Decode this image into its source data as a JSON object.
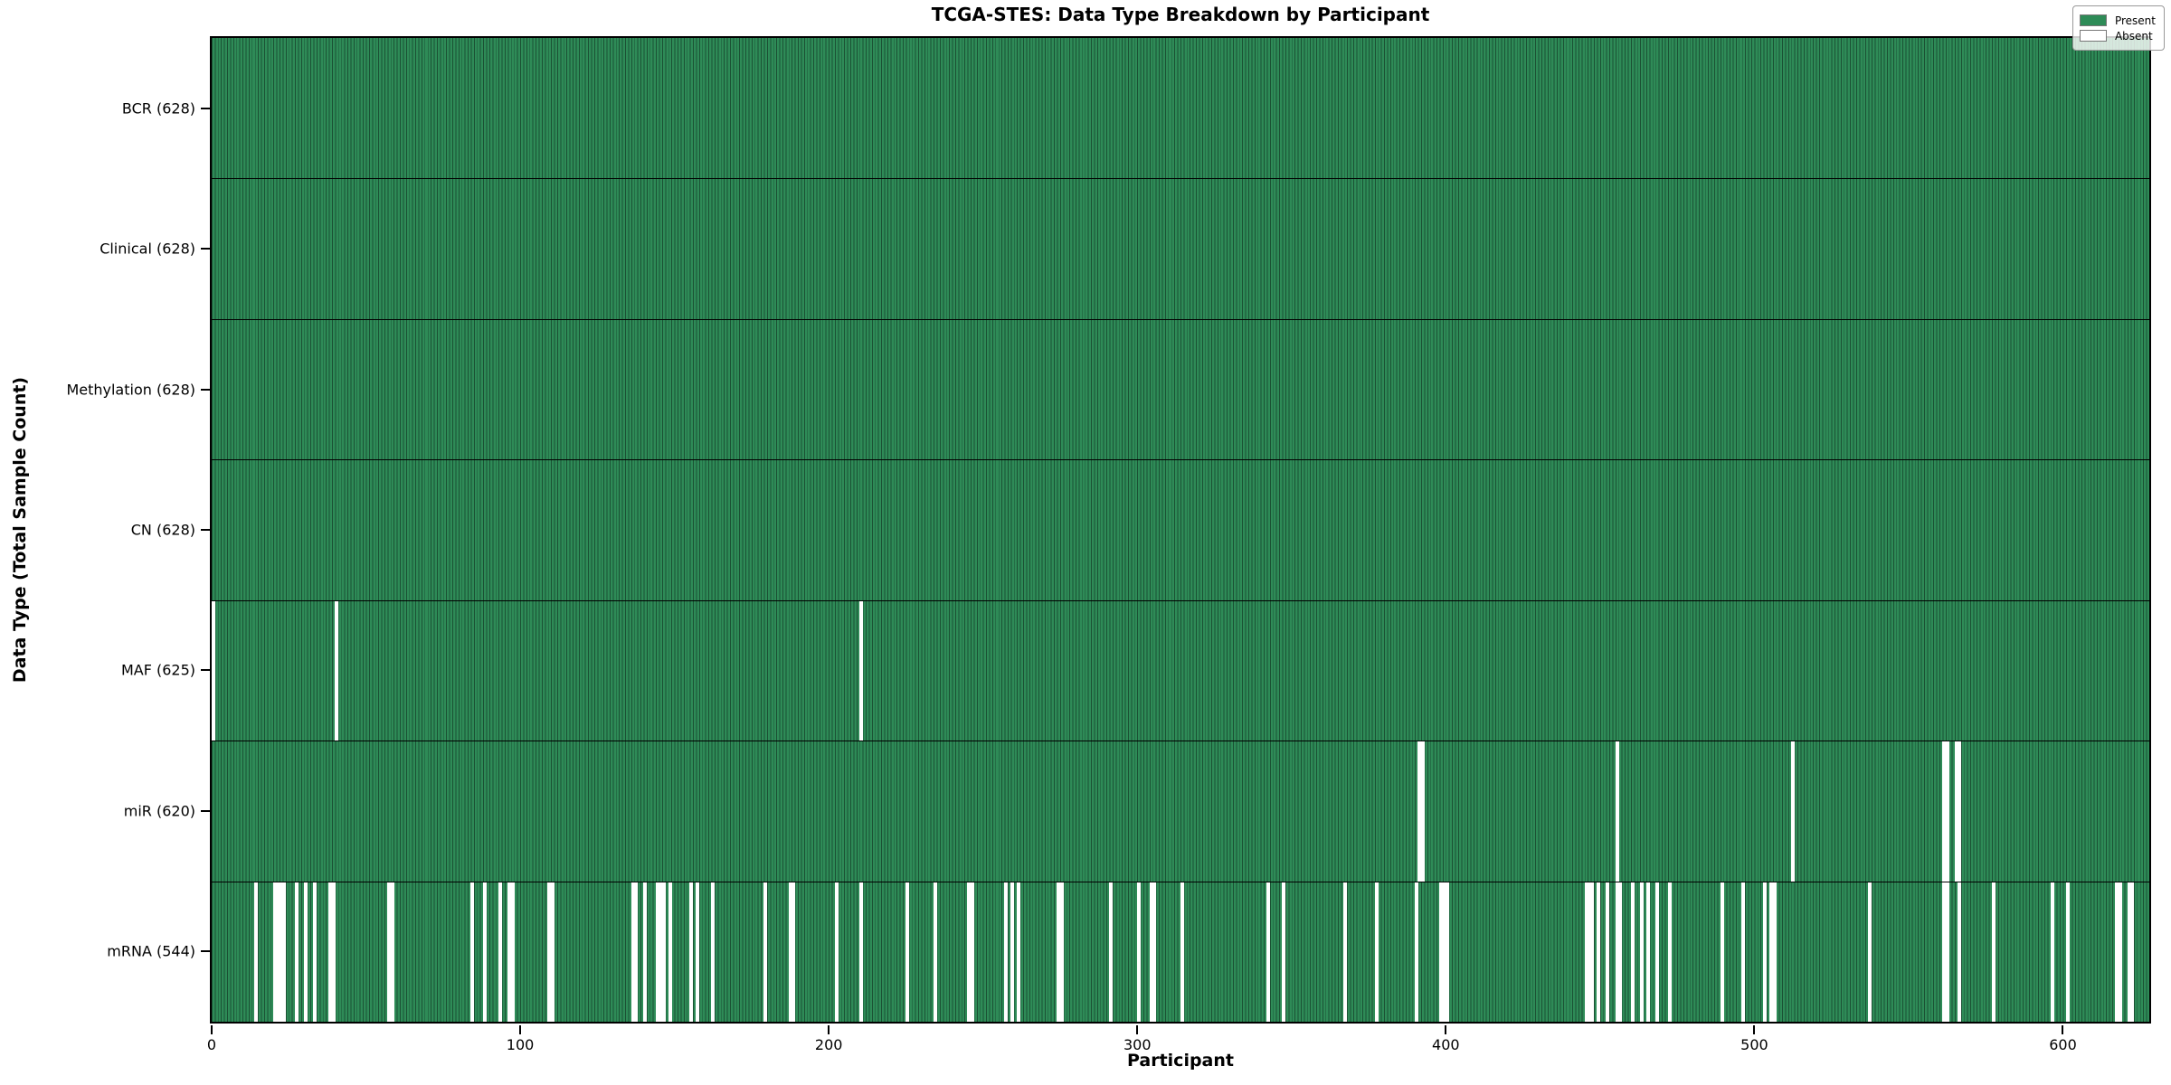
{
  "legend": {
    "items": [
      {
        "label": "Present",
        "color": "#2e8b57"
      },
      {
        "label": "Absent",
        "color": "#ffffff"
      }
    ]
  },
  "chart_data": {
    "type": "heatmap",
    "title": "TCGA-STES: Data Type Breakdown by Participant",
    "xlabel": "Participant",
    "ylabel": "Data Type (Total Sample Count)",
    "x_range": [
      0,
      628
    ],
    "x_ticks": [
      0,
      100,
      200,
      300,
      400,
      500,
      600
    ],
    "n_participants": 628,
    "present_color": "#2e8b57",
    "absent_color": "#ffffff",
    "legend_position": "upper right",
    "grid": false,
    "rows": [
      {
        "label": "BCR (628)",
        "data_type": "BCR",
        "total_samples": 628,
        "absent_participants": []
      },
      {
        "label": "Clinical (628)",
        "data_type": "Clinical",
        "total_samples": 628,
        "absent_participants": []
      },
      {
        "label": "Methylation (628)",
        "data_type": "Methylation",
        "total_samples": 628,
        "absent_participants": []
      },
      {
        "label": "CN (628)",
        "data_type": "CN",
        "total_samples": 628,
        "absent_participants": []
      },
      {
        "label": "MAF (625)",
        "data_type": "MAF",
        "total_samples": 625,
        "absent_participants": [
          0,
          40,
          210
        ]
      },
      {
        "label": "miR (620)",
        "data_type": "miR",
        "total_samples": 620,
        "absent_participants": [
          391,
          392,
          455,
          512,
          561,
          562,
          565,
          566
        ]
      },
      {
        "label": "mRNA (544)",
        "data_type": "mRNA",
        "total_samples": 544,
        "absent_participants": [
          14,
          20,
          21,
          22,
          23,
          27,
          30,
          33,
          38,
          39,
          57,
          58,
          84,
          88,
          93,
          96,
          97,
          109,
          110,
          136,
          137,
          140,
          144,
          145,
          146,
          148,
          155,
          157,
          162,
          179,
          187,
          188,
          202,
          210,
          225,
          234,
          245,
          246,
          257,
          259,
          261,
          274,
          275,
          291,
          300,
          304,
          305,
          314,
          342,
          347,
          367,
          377,
          390,
          398,
          399,
          400,
          445,
          446,
          447,
          449,
          452,
          455,
          456,
          460,
          463,
          465,
          468,
          472,
          489,
          496,
          503,
          505,
          506,
          537,
          561,
          562,
          566,
          577,
          596,
          601,
          617,
          618,
          621,
          622
        ]
      }
    ]
  }
}
